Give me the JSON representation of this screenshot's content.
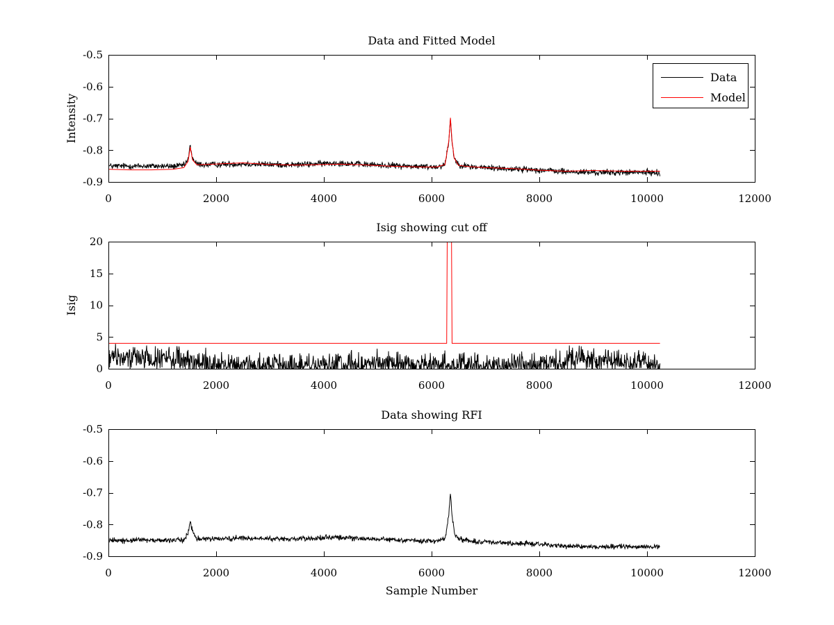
{
  "figure": {
    "background": "#ffffff"
  },
  "chart_data": [
    {
      "type": "line",
      "title": "Data and Fitted Model",
      "xlabel": "",
      "ylabel": "Intensity",
      "xlim": [
        0,
        12000
      ],
      "ylim": [
        -0.9,
        -0.5
      ],
      "xticks": [
        0,
        2000,
        4000,
        6000,
        8000,
        10000,
        12000
      ],
      "yticks": [
        -0.9,
        -0.8,
        -0.7,
        -0.6,
        -0.5
      ],
      "xtick_labels": [
        "0",
        "2000",
        "4000",
        "6000",
        "8000",
        "10000",
        "12000"
      ],
      "ytick_labels": [
        "-0.9",
        "-0.8",
        "-0.7",
        "-0.6",
        "-0.5"
      ],
      "grid": false,
      "legend": {
        "position": "top-right",
        "entries": [
          {
            "label": "Data",
            "color": "#000000"
          },
          {
            "label": "Model",
            "color": "#ff0000"
          }
        ]
      },
      "series": [
        {
          "name": "Data",
          "color": "#000000",
          "noise": 0.006,
          "x": [
            0,
            400,
            800,
            1200,
            1400,
            1480,
            1520,
            1560,
            1640,
            1800,
            2500,
            3000,
            3500,
            4000,
            4300,
            4700,
            5200,
            5800,
            6100,
            6250,
            6320,
            6350,
            6380,
            6420,
            6500,
            6700,
            7000,
            7500,
            8000,
            8500,
            9000,
            9500,
            10000,
            10240
          ],
          "y": [
            -0.85,
            -0.85,
            -0.85,
            -0.851,
            -0.848,
            -0.83,
            -0.785,
            -0.825,
            -0.844,
            -0.846,
            -0.843,
            -0.845,
            -0.846,
            -0.842,
            -0.84,
            -0.845,
            -0.848,
            -0.852,
            -0.852,
            -0.845,
            -0.77,
            -0.7,
            -0.775,
            -0.825,
            -0.845,
            -0.852,
            -0.855,
            -0.859,
            -0.862,
            -0.868,
            -0.87,
            -0.87,
            -0.87,
            -0.871
          ]
        },
        {
          "name": "Model",
          "color": "#ff0000",
          "noise": 0,
          "x": [
            0,
            400,
            800,
            1200,
            1400,
            1480,
            1520,
            1560,
            1640,
            1800,
            2500,
            3000,
            3500,
            4000,
            4300,
            4700,
            5200,
            5800,
            6100,
            6250,
            6320,
            6350,
            6380,
            6420,
            6500,
            6700,
            7000,
            7500,
            8000,
            8500,
            9000,
            9500,
            10000,
            10240
          ],
          "y": [
            -0.86,
            -0.862,
            -0.862,
            -0.86,
            -0.855,
            -0.835,
            -0.79,
            -0.83,
            -0.846,
            -0.845,
            -0.84,
            -0.845,
            -0.847,
            -0.845,
            -0.844,
            -0.846,
            -0.85,
            -0.853,
            -0.853,
            -0.845,
            -0.77,
            -0.698,
            -0.772,
            -0.825,
            -0.848,
            -0.852,
            -0.855,
            -0.858,
            -0.863,
            -0.866,
            -0.864,
            -0.866,
            -0.866,
            -0.866
          ]
        }
      ]
    },
    {
      "type": "line",
      "title": "Isig showing cut off",
      "xlabel": "",
      "ylabel": "Isig",
      "xlim": [
        0,
        12000
      ],
      "ylim": [
        0,
        20
      ],
      "xticks": [
        0,
        2000,
        4000,
        6000,
        8000,
        10000,
        12000
      ],
      "yticks": [
        0,
        5,
        10,
        15,
        20
      ],
      "xtick_labels": [
        "0",
        "2000",
        "4000",
        "6000",
        "8000",
        "10000",
        "12000"
      ],
      "ytick_labels": [
        "0",
        "5",
        "10",
        "15",
        "20"
      ],
      "grid": false,
      "series": [
        {
          "color": "#ff0000",
          "noise": 0,
          "x": [
            0,
            6280,
            6290,
            6370,
            6380,
            10240
          ],
          "y": [
            4,
            4,
            20,
            20,
            4,
            4
          ]
        },
        {
          "color": "#000000",
          "noise": 1.1,
          "x": [
            0,
            500,
            1000,
            1500,
            2000,
            3000,
            4000,
            5000,
            6000,
            7000,
            8000,
            8500,
            9000,
            9500,
            10000,
            10240
          ],
          "y": [
            1.7,
            1.8,
            1.6,
            1.2,
            0.6,
            0.5,
            0.5,
            0.7,
            0.7,
            0.6,
            0.8,
            1.3,
            1.5,
            1.2,
            0.9,
            0.9
          ]
        }
      ]
    },
    {
      "type": "line",
      "title": "Data showing RFI",
      "xlabel": "Sample Number",
      "ylabel": "",
      "xlim": [
        0,
        12000
      ],
      "ylim": [
        -0.9,
        -0.5
      ],
      "xticks": [
        0,
        2000,
        4000,
        6000,
        8000,
        10000,
        12000
      ],
      "yticks": [
        -0.9,
        -0.8,
        -0.7,
        -0.6,
        -0.5
      ],
      "xtick_labels": [
        "0",
        "2000",
        "4000",
        "6000",
        "8000",
        "10000",
        "12000"
      ],
      "ytick_labels": [
        "-0.9",
        "-0.8",
        "-0.7",
        "-0.6",
        "-0.5"
      ],
      "grid": false,
      "series": [
        {
          "color": "#000000",
          "noise": 0.005,
          "x": [
            0,
            400,
            800,
            1200,
            1400,
            1480,
            1520,
            1560,
            1640,
            1800,
            2500,
            3000,
            3500,
            4000,
            4300,
            4700,
            5200,
            5800,
            6100,
            6250,
            6320,
            6350,
            6380,
            6420,
            6500,
            6700,
            7000,
            7500,
            8000,
            8500,
            9000,
            9500,
            10000,
            10240
          ],
          "y": [
            -0.85,
            -0.85,
            -0.85,
            -0.851,
            -0.848,
            -0.83,
            -0.785,
            -0.825,
            -0.844,
            -0.846,
            -0.843,
            -0.845,
            -0.846,
            -0.842,
            -0.84,
            -0.845,
            -0.848,
            -0.852,
            -0.852,
            -0.845,
            -0.77,
            -0.7,
            -0.775,
            -0.825,
            -0.845,
            -0.852,
            -0.855,
            -0.859,
            -0.862,
            -0.868,
            -0.87,
            -0.87,
            -0.87,
            -0.871
          ]
        }
      ]
    }
  ]
}
